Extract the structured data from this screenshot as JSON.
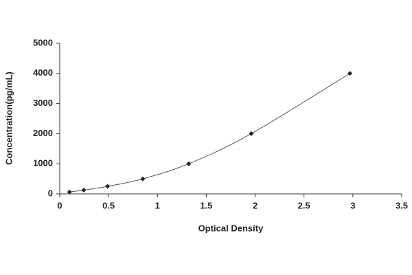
{
  "chart_data": {
    "type": "scatter",
    "x_label": "Optical Density",
    "y_label": "Concentration(pg/mL)",
    "x": [
      0.1,
      0.246,
      0.49,
      0.85,
      1.32,
      1.96,
      2.97
    ],
    "values": [
      62.5,
      125,
      250,
      500,
      1000,
      2000,
      4000
    ],
    "color": "#222",
    "line": true,
    "xlim": [
      0,
      3.5
    ],
    "xticks": [
      0,
      0.5,
      1,
      1.5,
      2,
      2.5,
      3,
      3.5
    ],
    "ylim": [
      0,
      5000
    ],
    "yticks": [
      0,
      1000,
      2000,
      3000,
      4000,
      5000
    ]
  }
}
